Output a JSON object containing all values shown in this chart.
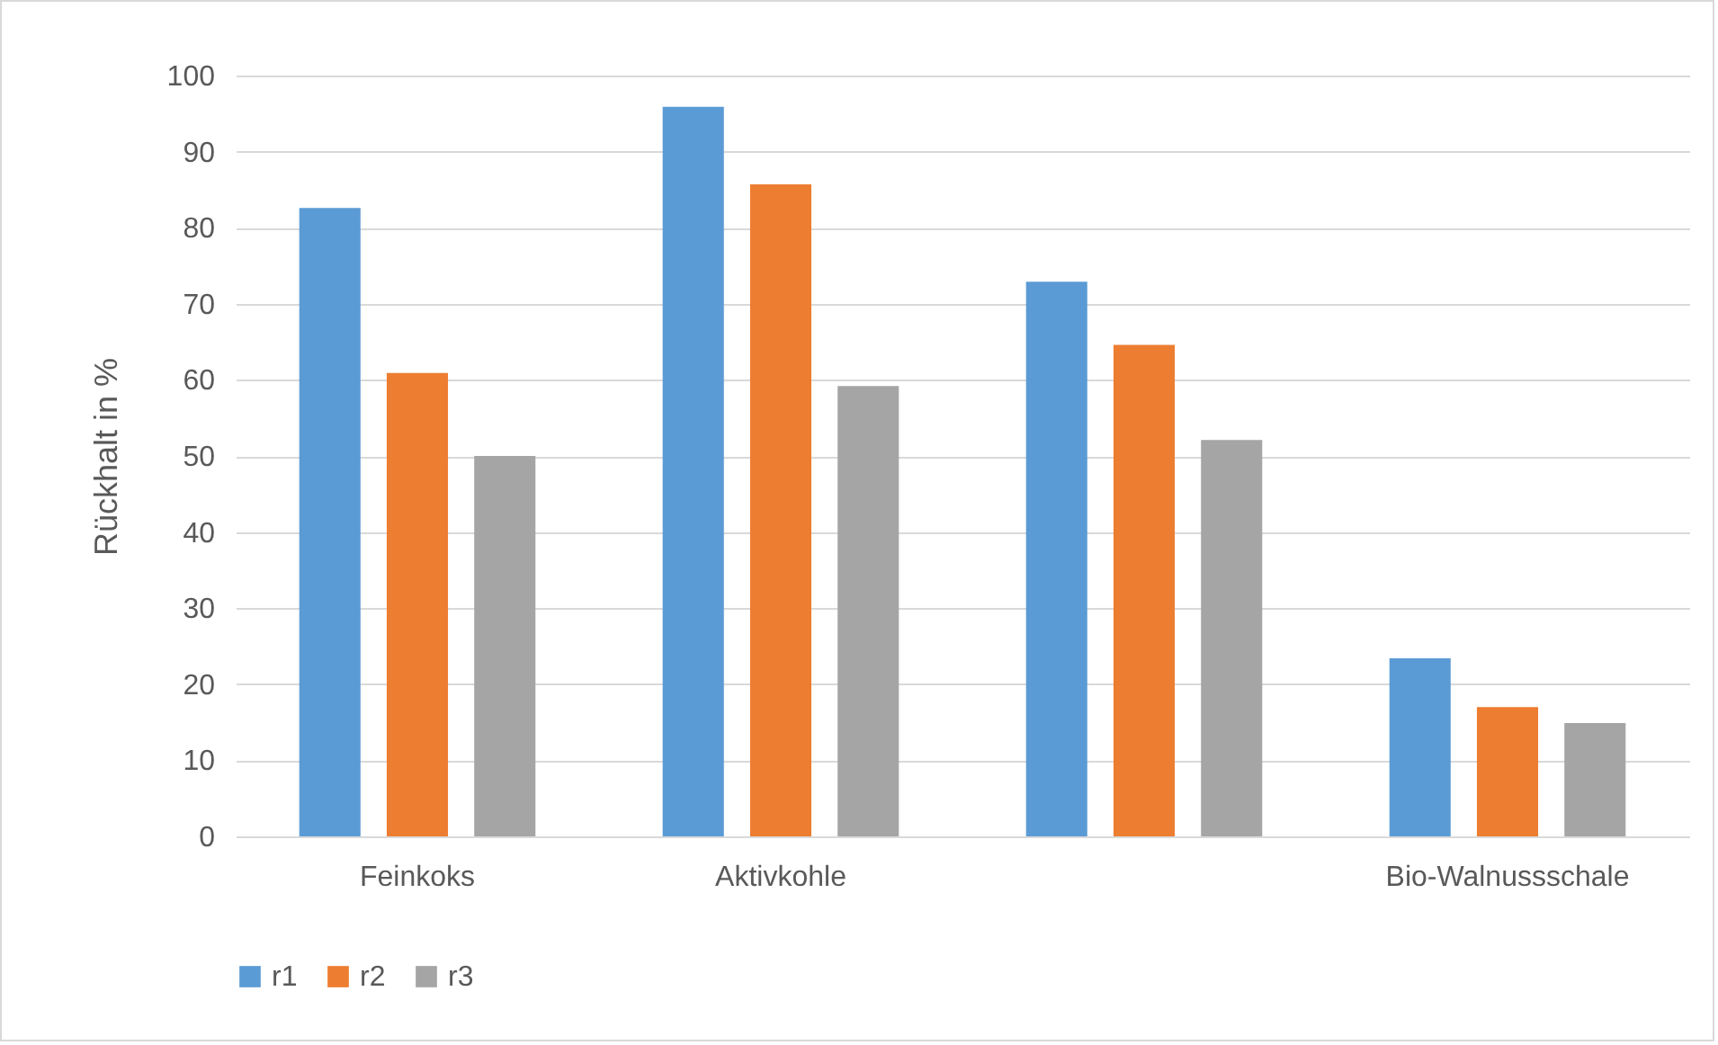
{
  "chart_data": {
    "type": "bar",
    "ylabel": "Rückhalt in %",
    "categories": [
      "Feinkoks",
      "Aktivkohle",
      null,
      "Bio-Walnussschale"
    ],
    "series": [
      {
        "name": "r1",
        "color": "#5b9bd5",
        "values": [
          82.6,
          95.9,
          72.9,
          23.4
        ]
      },
      {
        "name": "r2",
        "color": "#ed7d31",
        "values": [
          60.9,
          85.7,
          64.6,
          17.0
        ]
      },
      {
        "name": "r3",
        "color": "#a5a5a5",
        "values": [
          50.0,
          59.2,
          52.1,
          14.9
        ]
      }
    ],
    "ylim": [
      0,
      100
    ],
    "yticks": [
      0,
      10,
      20,
      30,
      40,
      50,
      60,
      70,
      80,
      90,
      100
    ],
    "grid": "y",
    "legend": "bottom"
  }
}
